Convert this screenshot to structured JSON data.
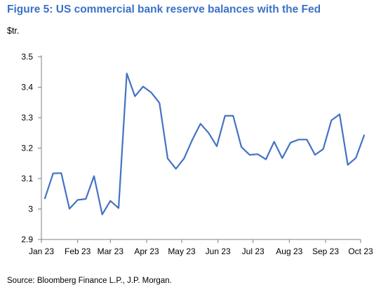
{
  "title": "Figure 5: US commercial bank reserve balances with the Fed",
  "unit_label": "$tr.",
  "source": "Source: Bloomberg Finance L.P., J.P. Morgan.",
  "chart_data": {
    "type": "line",
    "title": "Figure 5: US commercial bank reserve balances with the Fed",
    "ylabel": "$tr.",
    "xlabel": "",
    "ylim": [
      2.9,
      3.5
    ],
    "yticks": [
      2.9,
      3,
      3.1,
      3.2,
      3.3,
      3.4,
      3.5
    ],
    "ytick_labels": [
      "2.9",
      "3",
      "3.1",
      "3.2",
      "3.3",
      "3.4",
      "3.5"
    ],
    "xtick_labels": [
      "Jan 23",
      "Feb 23",
      "Mar 23",
      "Apr 23",
      "May 23",
      "Jun 23",
      "Jul 23",
      "Aug 23",
      "Sep 23",
      "Oct 23"
    ],
    "xlim": [
      "2023-01-01",
      "2023-10-01"
    ],
    "grid": false,
    "line_color": "#4472c4",
    "series": [
      {
        "x": [
          "2023-01-04",
          "2023-01-11",
          "2023-01-18",
          "2023-01-25",
          "2023-02-01",
          "2023-02-08",
          "2023-02-15",
          "2023-02-22",
          "2023-03-01",
          "2023-03-08",
          "2023-03-15",
          "2023-03-22",
          "2023-03-29",
          "2023-04-05",
          "2023-04-12",
          "2023-04-19",
          "2023-04-26",
          "2023-05-03",
          "2023-05-10",
          "2023-05-17",
          "2023-05-24",
          "2023-05-31",
          "2023-06-07",
          "2023-06-14",
          "2023-06-21",
          "2023-06-28",
          "2023-07-05",
          "2023-07-12",
          "2023-07-19",
          "2023-07-26",
          "2023-08-02",
          "2023-08-09",
          "2023-08-16",
          "2023-08-23",
          "2023-08-30",
          "2023-09-06",
          "2023-09-13",
          "2023-09-20",
          "2023-09-27",
          "2023-10-04"
        ],
        "values": [
          3.035,
          3.117,
          3.118,
          3.001,
          3.03,
          3.033,
          3.108,
          2.982,
          3.027,
          3.003,
          3.445,
          3.37,
          3.402,
          3.382,
          3.348,
          3.166,
          3.132,
          3.166,
          3.227,
          3.28,
          3.25,
          3.206,
          3.306,
          3.306,
          3.204,
          3.178,
          3.18,
          3.163,
          3.221,
          3.167,
          3.218,
          3.228,
          3.228,
          3.178,
          3.197,
          3.291,
          3.311,
          3.145,
          3.168,
          3.242
        ]
      }
    ]
  }
}
